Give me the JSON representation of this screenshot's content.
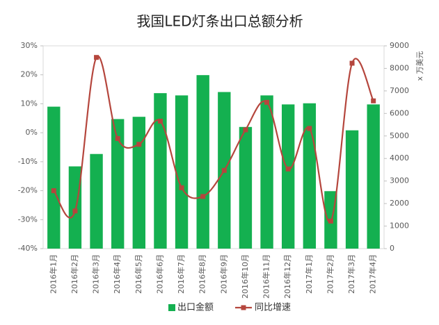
{
  "chart_data": {
    "type": "bar-line",
    "title": "我国LED灯条出口总额分析",
    "categories": [
      "2016年1月",
      "2016年2月",
      "2016年3月",
      "2016年4月",
      "2016年5月",
      "2016年6月",
      "2016年7月",
      "2016年8月",
      "2016年9月",
      "2016年10月",
      "2016年11月",
      "2016年12月",
      "2017年1月",
      "2017年2月",
      "2017年3月",
      "2017年4月"
    ],
    "series": [
      {
        "name": "出口金额",
        "color": "#14b050",
        "type": "bar",
        "axis": "y2",
        "values": [
          6300,
          3650,
          4200,
          5750,
          5850,
          6900,
          6800,
          7700,
          6950,
          5400,
          6800,
          6400,
          6450,
          2550,
          5250,
          6400
        ]
      },
      {
        "name": "同比增速",
        "color": "#b5463d",
        "type": "line",
        "axis": "y",
        "values": [
          -20,
          -27,
          26,
          -2,
          -4,
          4,
          -19,
          -22,
          -13,
          1,
          10.5,
          -12.5,
          1.5,
          -30.5,
          24,
          11
        ]
      }
    ],
    "ylim": [
      -40,
      30
    ],
    "yticks": [
      {
        "value": -40,
        "label": "-40%"
      },
      {
        "value": -30,
        "label": "-30%"
      },
      {
        "value": -20,
        "label": "-20%"
      },
      {
        "value": -10,
        "label": "-10%"
      },
      {
        "value": 0,
        "label": "0%"
      },
      {
        "value": 10,
        "label": "10%"
      },
      {
        "value": 20,
        "label": "20%"
      },
      {
        "value": 30,
        "label": "30%"
      }
    ],
    "y2lim": [
      0,
      9000
    ],
    "y2ticks": [
      0,
      1000,
      2000,
      3000,
      4000,
      5000,
      6000,
      7000,
      8000,
      9000
    ],
    "y2label": "x 万美元",
    "grid": false,
    "legend": "bottom"
  }
}
